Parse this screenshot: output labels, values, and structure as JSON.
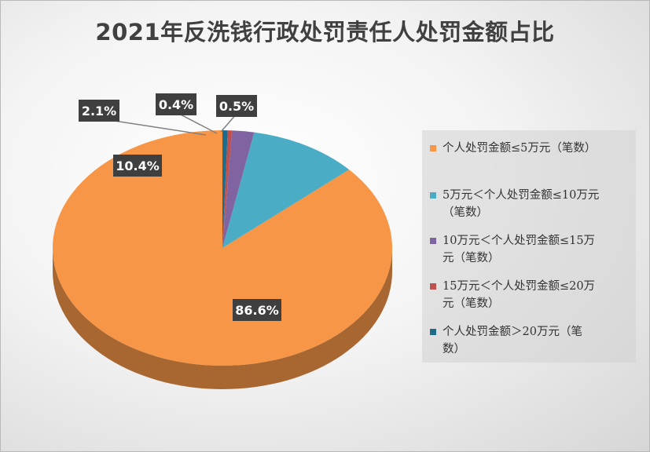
{
  "title": "2021年反洗钱行政处罚责任人处罚金额占比",
  "chart_data": {
    "type": "pie",
    "title": "2021年反洗钱行政处罚责任人处罚金额占比",
    "legend_position": "right",
    "series": [
      {
        "name": "个人处罚金额≤5万元（笔数）",
        "value": 86.6,
        "label": "86.6%",
        "color": "#f79646"
      },
      {
        "name": "5万元＜个人处罚金额≤10万元（笔数）",
        "value": 10.4,
        "label": "10.4%",
        "color": "#4bacc6"
      },
      {
        "name": "10万元＜个人处罚金额≤15万元（笔数）",
        "value": 2.1,
        "label": "2.1%",
        "color": "#8064a2"
      },
      {
        "name": "15万元＜个人处罚金额≤20万元（笔数）",
        "value": 0.4,
        "label": "0.4%",
        "color": "#c0504d"
      },
      {
        "name": "个人处罚金额＞20万元（笔数）",
        "value": 0.5,
        "label": "0.5%",
        "color": "#1f6b8c"
      }
    ]
  },
  "legend": [
    {
      "line1": "个人处罚金额≤5万元（笔数）",
      "line2": ""
    },
    {
      "line1": "5万元＜个人处罚金额≤10万元",
      "line2": "（笔数）"
    },
    {
      "line1": "10万元＜个人处罚金额≤15万",
      "line2": "元（笔数）"
    },
    {
      "line1": "15万元＜个人处罚金额≤20万",
      "line2": "元（笔数）"
    },
    {
      "line1": "个人处罚金额＞20万元（笔",
      "line2": "数）"
    }
  ]
}
